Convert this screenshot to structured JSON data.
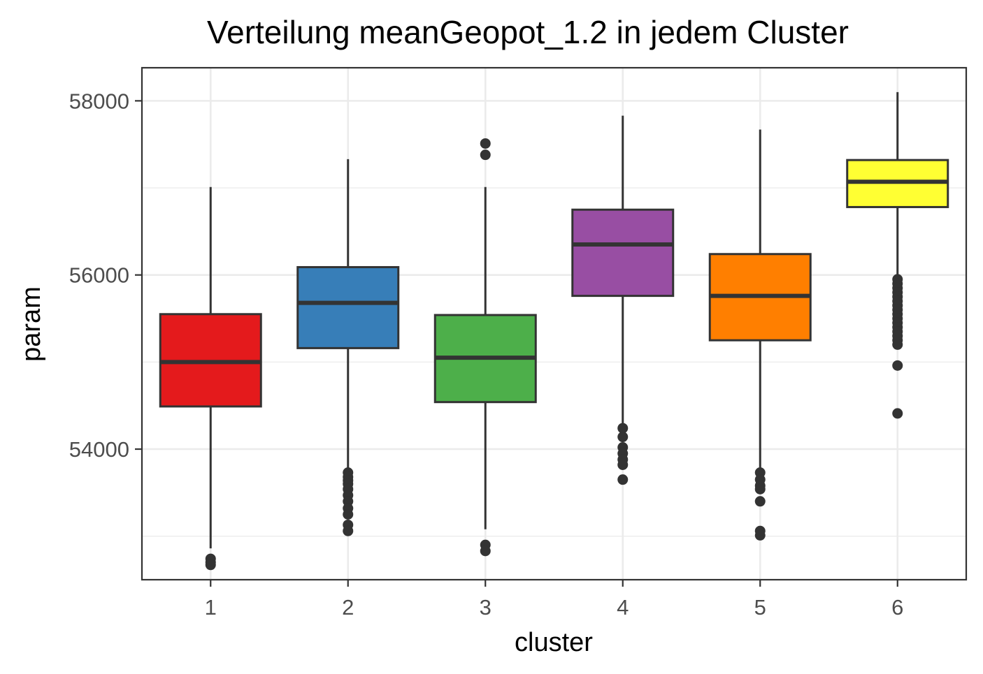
{
  "chart_data": {
    "type": "boxplot",
    "title": "Verteilung meanGeopot_1.2 in jedem Cluster",
    "xlabel": "cluster",
    "ylabel": "param",
    "categories": [
      "1",
      "2",
      "3",
      "4",
      "5",
      "6"
    ],
    "y_ticks": [
      "54000",
      "56000",
      "58000"
    ],
    "ylim": [
      52500,
      58380
    ],
    "grid": true,
    "legend": "none",
    "boxes": [
      {
        "category": "1",
        "color": "#E41A1C",
        "whisker_low": 52860,
        "q1": 54490,
        "median": 55000,
        "q3": 55550,
        "whisker_high": 57010,
        "outliers": [
          52740,
          52700,
          52670
        ]
      },
      {
        "category": "2",
        "color": "#377EB8",
        "whisker_low": 53770,
        "q1": 55160,
        "median": 55680,
        "q3": 56090,
        "whisker_high": 57330,
        "outliers": [
          53730,
          53680,
          53640,
          53600,
          53540,
          53470,
          53400,
          53320,
          53250,
          53130,
          53060
        ]
      },
      {
        "category": "3",
        "color": "#4DAF4A",
        "whisker_low": 53080,
        "q1": 54540,
        "median": 55050,
        "q3": 55540,
        "whisker_high": 57010,
        "outliers": [
          57510,
          57380,
          52900,
          52830
        ]
      },
      {
        "category": "4",
        "color": "#984EA3",
        "whisker_low": 54280,
        "q1": 55760,
        "median": 56350,
        "q3": 56750,
        "whisker_high": 57830,
        "outliers": [
          54240,
          54140,
          54020,
          53950,
          53880,
          53820,
          53650
        ]
      },
      {
        "category": "5",
        "color": "#FF7F00",
        "whisker_low": 53760,
        "q1": 55250,
        "median": 55760,
        "q3": 56240,
        "whisker_high": 57670,
        "outliers": [
          53730,
          53650,
          53580,
          53540,
          53400,
          53060,
          53010
        ]
      },
      {
        "category": "6",
        "color": "#FFFF33",
        "whisker_low": 55980,
        "q1": 56780,
        "median": 57070,
        "q3": 57320,
        "whisker_high": 58100,
        "outliers": [
          55950,
          55900,
          55850,
          55800,
          55750,
          55700,
          55650,
          55600,
          55550,
          55500,
          55450,
          55400,
          55350,
          55300,
          55250,
          55200,
          54960,
          54410
        ]
      }
    ]
  }
}
